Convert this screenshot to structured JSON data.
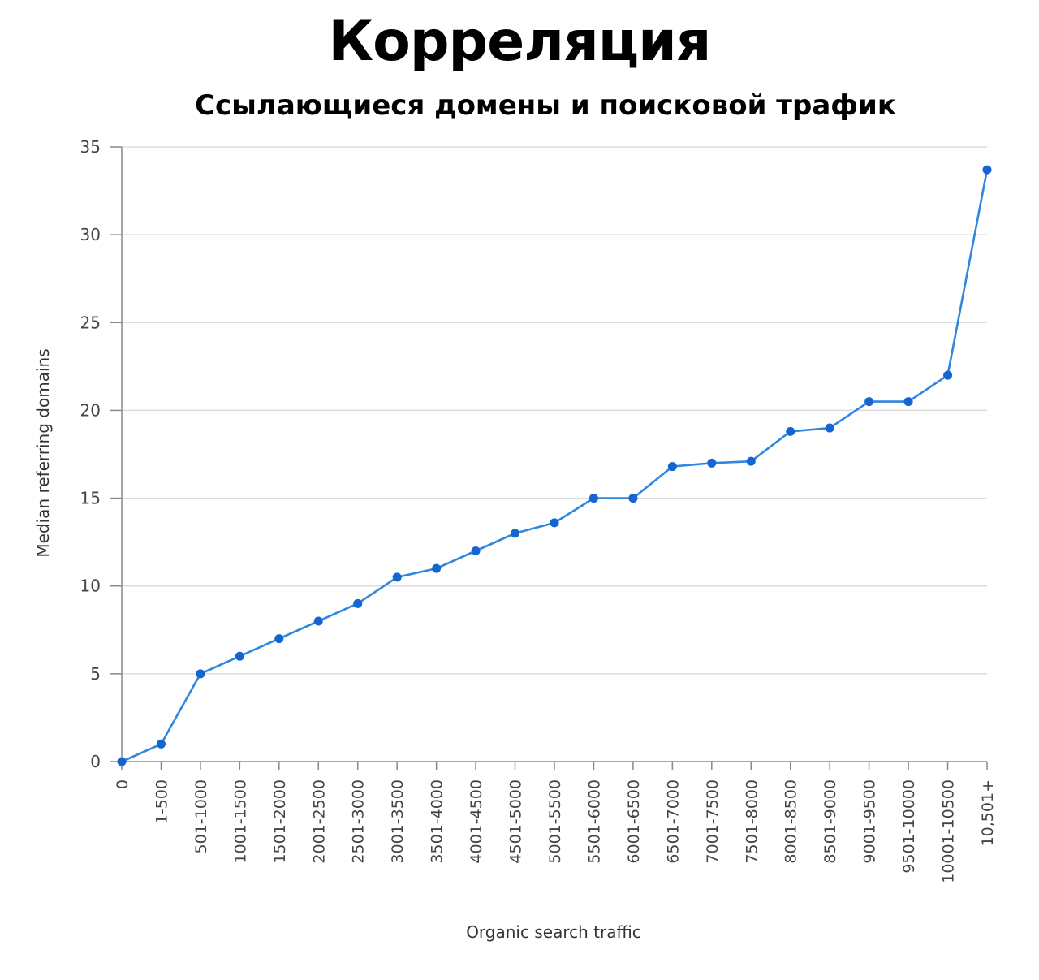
{
  "title": "Корреляция",
  "subtitle": "Ссылающиеся домены и поисковой трафик",
  "chart_data": {
    "type": "line",
    "xlabel": "Organic search traffic",
    "ylabel": "Median referring domains",
    "ylim": [
      0,
      35
    ],
    "yticks": [
      0,
      5,
      10,
      15,
      20,
      25,
      30,
      35
    ],
    "grid": true,
    "line_color": "#2F86DF",
    "point_color": "#1565D0",
    "categories": [
      "0",
      "1-500",
      "501-1000",
      "1001-1500",
      "1501-2000",
      "2001-2500",
      "2501-3000",
      "3001-3500",
      "3501-4000",
      "4001-4500",
      "4501-5000",
      "5001-5500",
      "5501-6000",
      "6001-6500",
      "6501-7000",
      "7001-7500",
      "7501-8000",
      "8001-8500",
      "8501-9000",
      "9001-9500",
      "9501-10000",
      "10001-10500",
      "10,501+"
    ],
    "values": [
      0,
      1,
      5,
      6,
      7,
      8,
      9,
      10.5,
      11,
      12,
      13,
      13.6,
      15,
      15,
      16.8,
      17,
      17.1,
      18.8,
      19,
      20.5,
      20.5,
      22,
      33.7
    ]
  }
}
